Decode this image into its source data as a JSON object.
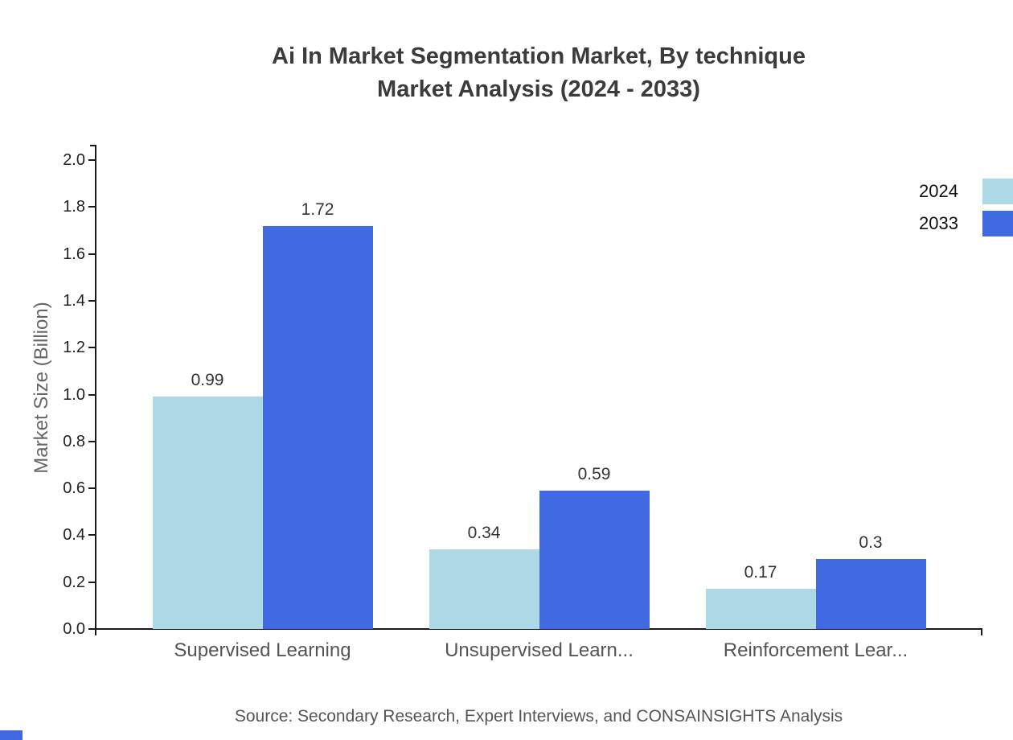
{
  "title_line1": "Ai In Market Segmentation Market, By technique",
  "title_line2": "Market Analysis (2024 - 2033)",
  "source": "Source: Secondary Research, Expert Interviews, and CONSAINSIGHTS Analysis",
  "colors": {
    "series_2024": "#ADD8E6",
    "series_2033": "#4169E1",
    "axis": "#1a1a1a",
    "title_text": "#3b3b3b",
    "muted_text": "#555555"
  },
  "chart_data": {
    "type": "bar",
    "title": "Ai In Market Segmentation Market, By technique Market Analysis (2024 - 2033)",
    "xlabel": "",
    "ylabel": "Market Size (Billion)",
    "ylim": [
      0.0,
      2.0
    ],
    "ytick_step": 0.2,
    "ytick_labels": [
      "0.0",
      "0.2",
      "0.4",
      "0.6",
      "0.8",
      "1.0",
      "1.2",
      "1.4",
      "1.6",
      "1.8",
      "2.0"
    ],
    "grid": false,
    "legend_position": "top-right",
    "categories": [
      "Supervised Learning",
      "Unsupervised Learn...",
      "Reinforcement Lear..."
    ],
    "series": [
      {
        "name": "2024",
        "color": "#ADD8E6",
        "values": [
          0.99,
          0.34,
          0.17
        ]
      },
      {
        "name": "2033",
        "color": "#4169E1",
        "values": [
          1.72,
          0.59,
          0.3
        ]
      }
    ],
    "value_labels": {
      "s2024": [
        "0.99",
        "0.34",
        "0.17"
      ],
      "s2033": [
        "1.72",
        "0.59",
        "0.3"
      ]
    }
  }
}
